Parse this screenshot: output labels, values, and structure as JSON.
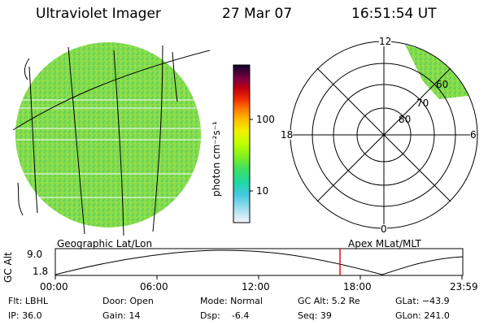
{
  "header": {
    "instrument": "Ultraviolet Imager",
    "date": "27 Mar 07",
    "time": "16:51:54 UT"
  },
  "colorbar": {
    "label": "photon cm⁻²s⁻¹",
    "ticks": [
      "100",
      "10"
    ],
    "colors": [
      "#000033",
      "#3a0040",
      "#6a0050",
      "#8a0040",
      "#b00020",
      "#d00010",
      "#f03000",
      "#ff7a00",
      "#ffb000",
      "#ffe000",
      "#e8ff00",
      "#b8ff00",
      "#80f020",
      "#40e060",
      "#20d8a0",
      "#40c8e0",
      "#a0e0f0",
      "#e8f0f8"
    ]
  },
  "polar_plot": {
    "hour_labels": [
      "12",
      "18",
      "6",
      "0"
    ],
    "lat_labels": [
      "60",
      "70",
      "80"
    ]
  },
  "geo_plot": {
    "fill_color": "#7cd64a"
  },
  "timeline": {
    "left_title": "Geographic Lat/Lon",
    "right_title": "Apex MLat/MLT",
    "ylabel": "GC Alt",
    "yticks": [
      "9.0",
      "1.8"
    ],
    "xticks": [
      "00:00",
      "06:00",
      "12:00",
      "18:00",
      "23:59"
    ],
    "marker_color": "#e00000"
  },
  "info": {
    "rows": [
      [
        "Flt: LBHL",
        "Door: Open",
        "Mode: Normal",
        "GC Alt: 5.2 Re",
        "GLat: −43.9"
      ],
      [
        "IP: 36.0",
        "Gain: 14",
        "Dsp:    -6.4",
        "Seq: 39",
        "GLon: 241.0"
      ]
    ]
  }
}
